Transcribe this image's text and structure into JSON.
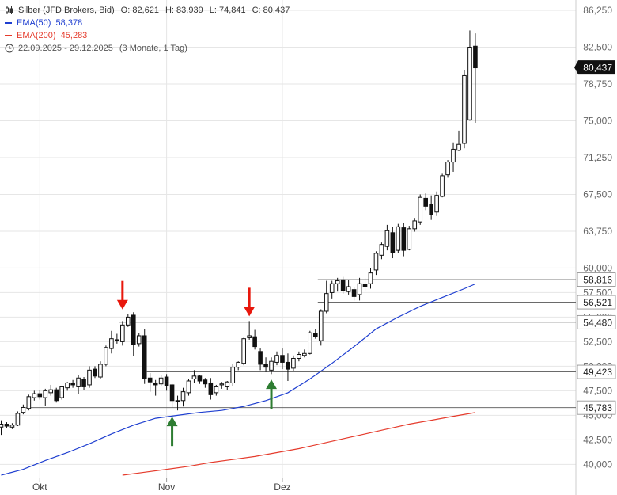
{
  "legend": {
    "instrument": "Silber (JFD Brokers, Bid)",
    "open_label": "O:",
    "open": "82,621",
    "high_label": "H:",
    "high": "83,939",
    "low_label": "L:",
    "low": "74,841",
    "close_label": "C:",
    "close": "80,437",
    "ema50_label": "EMA(50)",
    "ema50_value": "58,378",
    "ema200_label": "EMA(200)",
    "ema200_value": "45,283",
    "date_range": "22.09.2025 - 29.12.2025",
    "period": "(3 Monate, 1 Tag)"
  },
  "colors": {
    "ema50": "#1f3fd0",
    "ema200": "#e53b2c",
    "up_arrow": "#2e7d32",
    "down_arrow": "#e8170c",
    "candle": "#111111",
    "grid": "#e6e6e6",
    "level_line": "#555555"
  },
  "chart_data": {
    "type": "candlestick",
    "title": "Silber (JFD Brokers, Bid)",
    "ylim": [
      38900,
      87300
    ],
    "y_ticks": [
      40000,
      42500,
      45000,
      47500,
      50000,
      52500,
      55000,
      57500,
      60000,
      63750,
      67500,
      71250,
      75000,
      78750,
      82500,
      86250
    ],
    "y_tick_labels": [
      "40,000",
      "42,500",
      "45,000",
      "47,500",
      "50,000",
      "52,500",
      "55,000",
      "57,500",
      "60,000",
      "63,750",
      "67,500",
      "71,250",
      "75,000",
      "78,750",
      "82,500",
      "86,250"
    ],
    "x_labels": [
      {
        "index": 7,
        "label": "Okt"
      },
      {
        "index": 30,
        "label": "Nov"
      },
      {
        "index": 51,
        "label": "Dez"
      }
    ],
    "last_price": 80437,
    "last_price_label": "80,437",
    "candles": [
      [
        43800,
        44500,
        43000,
        44100
      ],
      [
        44100,
        44300,
        43700,
        43900
      ],
      [
        43800,
        44200,
        43600,
        44000
      ],
      [
        44000,
        45400,
        43900,
        45200
      ],
      [
        45300,
        46100,
        45100,
        45800
      ],
      [
        45700,
        47100,
        45500,
        46900
      ],
      [
        46800,
        47500,
        46500,
        47200
      ],
      [
        47200,
        47600,
        46600,
        46900
      ],
      [
        46800,
        47700,
        46000,
        47500
      ],
      [
        47300,
        48100,
        47000,
        47600
      ],
      [
        47600,
        47800,
        46300,
        46500
      ],
      [
        46800,
        48000,
        46600,
        47900
      ],
      [
        47800,
        48400,
        47500,
        48300
      ],
      [
        48300,
        48600,
        47800,
        48100
      ],
      [
        47900,
        49100,
        47200,
        48800
      ],
      [
        48700,
        48900,
        47600,
        47900
      ],
      [
        48100,
        50000,
        47800,
        49600
      ],
      [
        49700,
        50000,
        48800,
        49000
      ],
      [
        48900,
        50500,
        48700,
        50200
      ],
      [
        50200,
        52100,
        50000,
        51900
      ],
      [
        51800,
        53600,
        51300,
        52800
      ],
      [
        52700,
        53300,
        52300,
        52600
      ],
      [
        52500,
        54600,
        52100,
        54200
      ],
      [
        54200,
        55300,
        54000,
        55000
      ],
      [
        55200,
        55500,
        51000,
        52200
      ],
      [
        52300,
        53400,
        52000,
        53100
      ],
      [
        53100,
        53800,
        48200,
        48700
      ],
      [
        48800,
        49300,
        47400,
        48400
      ],
      [
        48300,
        48600,
        47000,
        48100
      ],
      [
        48200,
        49100,
        48000,
        48800
      ],
      [
        48900,
        49200,
        47500,
        48000
      ],
      [
        48100,
        48200,
        45800,
        46500
      ],
      [
        46500,
        47000,
        45500,
        46500
      ],
      [
        46500,
        47800,
        45900,
        47400
      ],
      [
        47300,
        48700,
        47000,
        48500
      ],
      [
        48700,
        49600,
        48300,
        49000
      ],
      [
        49000,
        49100,
        48200,
        48500
      ],
      [
        48600,
        48800,
        47800,
        48200
      ],
      [
        48300,
        48800,
        46600,
        47100
      ],
      [
        47300,
        48100,
        47000,
        47900
      ],
      [
        48100,
        48400,
        47700,
        48200
      ],
      [
        47900,
        48500,
        47600,
        48400
      ],
      [
        48300,
        50200,
        48000,
        49900
      ],
      [
        49900,
        50500,
        49600,
        50400
      ],
      [
        50300,
        52900,
        50100,
        52800
      ],
      [
        52900,
        54600,
        52700,
        53100
      ],
      [
        53000,
        53700,
        51700,
        52000
      ],
      [
        51500,
        51800,
        49600,
        50200
      ],
      [
        50200,
        50900,
        49400,
        49900
      ],
      [
        49600,
        50900,
        49200,
        50500
      ],
      [
        50400,
        51500,
        50100,
        51100
      ],
      [
        51100,
        51800,
        49700,
        50400
      ],
      [
        50400,
        51300,
        48500,
        49700
      ],
      [
        49800,
        51100,
        49500,
        50800
      ],
      [
        50800,
        51500,
        50500,
        51200
      ],
      [
        51100,
        51700,
        50900,
        51300
      ],
      [
        51300,
        53600,
        51200,
        53400
      ],
      [
        53300,
        53800,
        52800,
        53000
      ],
      [
        52600,
        55800,
        52100,
        55600
      ],
      [
        55600,
        58700,
        55400,
        57400
      ],
      [
        57500,
        58700,
        56900,
        58400
      ],
      [
        58400,
        59000,
        57600,
        58700
      ],
      [
        58800,
        59100,
        57400,
        57700
      ],
      [
        57600,
        58800,
        57300,
        58100
      ],
      [
        57800,
        58100,
        56700,
        57100
      ],
      [
        57300,
        59000,
        56700,
        58400
      ],
      [
        58300,
        59000,
        57700,
        58100
      ],
      [
        58400,
        60000,
        57900,
        59500
      ],
      [
        59800,
        61700,
        59300,
        61500
      ],
      [
        61300,
        62600,
        60900,
        62400
      ],
      [
        62200,
        64400,
        61800,
        63800
      ],
      [
        63600,
        64200,
        61000,
        61600
      ],
      [
        61800,
        64500,
        61500,
        64200
      ],
      [
        64100,
        64600,
        61200,
        61800
      ],
      [
        61900,
        64300,
        61800,
        64000
      ],
      [
        64000,
        65100,
        63700,
        64800
      ],
      [
        64700,
        67500,
        64400,
        67200
      ],
      [
        67100,
        67600,
        65900,
        66300
      ],
      [
        66500,
        67400,
        64900,
        65400
      ],
      [
        65700,
        67800,
        65300,
        67400
      ],
      [
        67300,
        69600,
        67200,
        69400
      ],
      [
        69500,
        71000,
        69200,
        70800
      ],
      [
        70800,
        72800,
        69800,
        72100
      ],
      [
        72000,
        74000,
        71900,
        72600
      ],
      [
        72700,
        80200,
        72200,
        79600
      ],
      [
        75100,
        84200,
        75000,
        82500
      ],
      [
        82600,
        83900,
        74800,
        80400
      ]
    ],
    "ema50": [
      [
        0,
        38900
      ],
      [
        4,
        39500
      ],
      [
        8,
        40400
      ],
      [
        12,
        41200
      ],
      [
        16,
        42100
      ],
      [
        20,
        43100
      ],
      [
        24,
        44000
      ],
      [
        28,
        44700
      ],
      [
        32,
        45000
      ],
      [
        36,
        45300
      ],
      [
        40,
        45500
      ],
      [
        44,
        45900
      ],
      [
        48,
        46500
      ],
      [
        52,
        47300
      ],
      [
        56,
        48700
      ],
      [
        60,
        50300
      ],
      [
        64,
        52000
      ],
      [
        68,
        53800
      ],
      [
        72,
        55000
      ],
      [
        76,
        56100
      ],
      [
        80,
        57000
      ],
      [
        84,
        57900
      ],
      [
        86,
        58378
      ]
    ],
    "ema200": [
      [
        22,
        38900
      ],
      [
        26,
        39200
      ],
      [
        30,
        39500
      ],
      [
        34,
        39800
      ],
      [
        38,
        40200
      ],
      [
        42,
        40500
      ],
      [
        46,
        40800
      ],
      [
        50,
        41200
      ],
      [
        54,
        41600
      ],
      [
        58,
        42100
      ],
      [
        62,
        42600
      ],
      [
        66,
        43100
      ],
      [
        70,
        43600
      ],
      [
        74,
        44100
      ],
      [
        78,
        44500
      ],
      [
        82,
        44900
      ],
      [
        86,
        45283
      ]
    ],
    "levels": [
      {
        "value": 58816,
        "label": "58,816",
        "from_index": 58
      },
      {
        "value": 56521,
        "label": "56,521",
        "from_index": 58
      },
      {
        "value": 54480,
        "label": "54,480",
        "from_index": 22
      },
      {
        "value": 49423,
        "label": "49,423",
        "from_index": 27
      },
      {
        "value": 45783,
        "label": "45,783",
        "from_index": 5
      }
    ],
    "annotations": [
      {
        "type": "arrow-down",
        "index": 22,
        "value": 55300
      },
      {
        "type": "arrow-down",
        "index": 45,
        "value": 54600
      },
      {
        "type": "arrow-up",
        "index": 31,
        "value": 45500
      },
      {
        "type": "arrow-up",
        "index": 49,
        "value": 49300
      }
    ]
  }
}
